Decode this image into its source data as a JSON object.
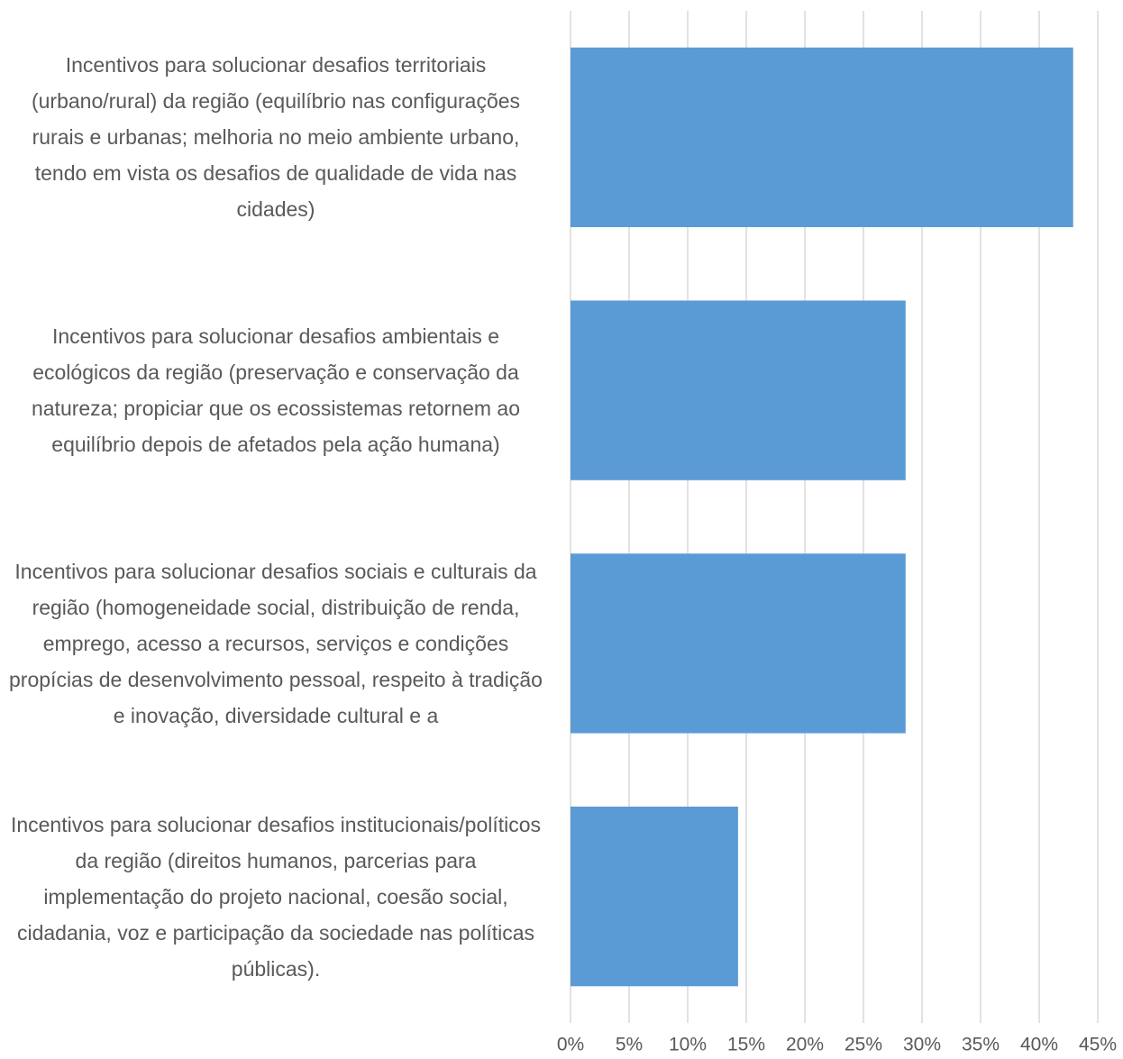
{
  "chart_data": {
    "type": "bar",
    "categories": [
      "Incentivos para solucionar desafios territoriais (urbano/rural) da região (equilíbrio nas configurações rurais e urbanas; melhoria no meio ambiente urbano, tendo em vista os desafios de qualidade de vida nas cidades)",
      "Incentivos para solucionar desafios ambientais e ecológicos da região (preservação e conservação da natureza; propiciar que os ecossistemas retornem ao equilíbrio depois de afetados pela ação humana)",
      "Incentivos para solucionar desafios sociais e culturais da região (homogeneidade social, distribuição de renda, emprego, acesso a recursos, serviços e condições propícias de desenvolvimento pessoal, respeito à tradição e inovação, diversidade cultural e a",
      "Incentivos para solucionar desafios institucionais/políticos da região (direitos humanos, parcerias para implementação do projeto nacional, coesão social, cidadania, voz e participação da sociedade nas políticas públicas)."
    ],
    "values": [
      42.9,
      28.6,
      28.6,
      14.3
    ],
    "color": "#5b9bd5",
    "xlim": [
      0,
      45
    ],
    "xticks": [
      {
        "value": 0,
        "label": "0%"
      },
      {
        "value": 5,
        "label": "5%"
      },
      {
        "value": 10,
        "label": "10%"
      },
      {
        "value": 15,
        "label": "15%"
      },
      {
        "value": 20,
        "label": "20%"
      },
      {
        "value": 25,
        "label": "25%"
      },
      {
        "value": 30,
        "label": "30%"
      },
      {
        "value": 35,
        "label": "35%"
      },
      {
        "value": 40,
        "label": "40%"
      },
      {
        "value": 45,
        "label": "45%"
      }
    ],
    "grid": true
  }
}
